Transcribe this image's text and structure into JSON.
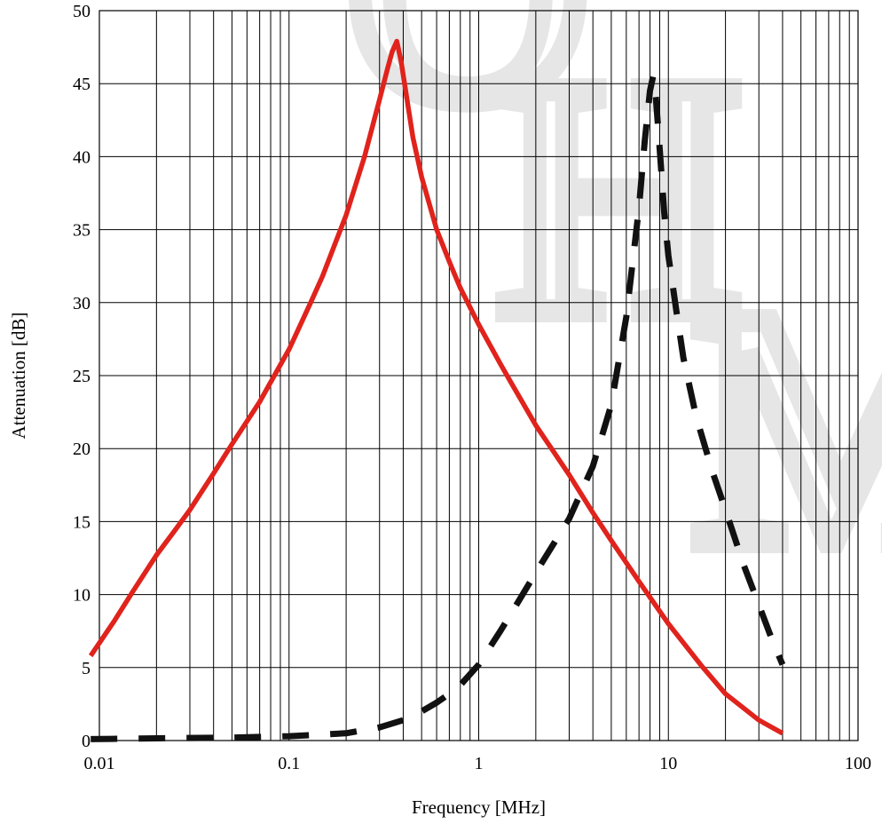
{
  "chart_data": {
    "type": "line",
    "xlabel": "Frequency [MHz]",
    "ylabel": "Attenuation [dB]",
    "xscale": "log",
    "xlim": [
      0.01,
      100
    ],
    "ylim": [
      0,
      50
    ],
    "grid": true,
    "legend": "none",
    "x_tick_labels": [
      "0.01",
      "0.1",
      "1",
      "10",
      "100"
    ],
    "y_tick_labels": [
      "0",
      "5",
      "10",
      "15",
      "20",
      "25",
      "30",
      "35",
      "40",
      "45",
      "50"
    ],
    "series": [
      {
        "color": "#e0231c",
        "line_style": "solid",
        "x": [
          0.009,
          0.012,
          0.015,
          0.02,
          0.025,
          0.03,
          0.04,
          0.05,
          0.07,
          0.1,
          0.13,
          0.15,
          0.2,
          0.25,
          0.3,
          0.33,
          0.35,
          0.37,
          0.39,
          0.42,
          0.45,
          0.5,
          0.6,
          0.7,
          0.8,
          1,
          1.3,
          1.5,
          2,
          3,
          4,
          5,
          7,
          10,
          15,
          20,
          30,
          40
        ],
        "y": [
          5.8,
          8.2,
          10.2,
          12.7,
          14.4,
          15.8,
          18.3,
          20.3,
          23.2,
          26.8,
          30.0,
          31.8,
          36.0,
          40.0,
          43.9,
          46.0,
          47.2,
          47.9,
          46.5,
          43.8,
          41.3,
          38.6,
          35.0,
          32.8,
          31.0,
          28.5,
          25.8,
          24.4,
          21.6,
          18.2,
          15.6,
          13.7,
          10.9,
          8.0,
          5.1,
          3.2,
          1.4,
          0.5
        ]
      },
      {
        "color": "#111111",
        "line_style": "dashed",
        "x": [
          0.009,
          0.02,
          0.05,
          0.1,
          0.2,
          0.3,
          0.4,
          0.5,
          0.6,
          0.7,
          0.8,
          1,
          1.3,
          1.5,
          2,
          3,
          4,
          5,
          6,
          7,
          7.5,
          8,
          8.3,
          8.6,
          9,
          9.5,
          10,
          11,
          12,
          14,
          17,
          20,
          25,
          30,
          35,
          40
        ],
        "y": [
          0.1,
          0.15,
          0.2,
          0.3,
          0.5,
          0.9,
          1.4,
          2.0,
          2.6,
          3.2,
          3.8,
          5.2,
          7.5,
          8.8,
          11.5,
          15.2,
          18.8,
          23.0,
          29.0,
          36.5,
          41.0,
          44.5,
          45.5,
          44.0,
          40.5,
          36.2,
          33.2,
          29.5,
          26.2,
          22.2,
          18.5,
          15.8,
          12.0,
          9.3,
          7.0,
          5.2
        ]
      }
    ]
  }
}
